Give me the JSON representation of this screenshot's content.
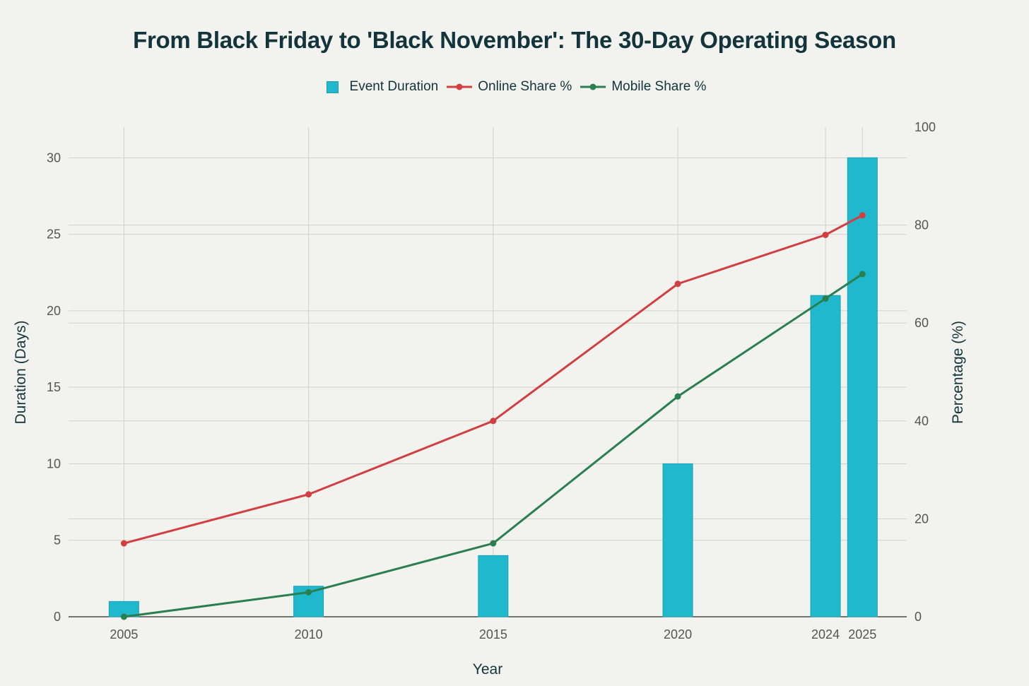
{
  "chart_data": {
    "type": "bar+line",
    "title": "From Black Friday to 'Black November': The 30-Day Operating Season",
    "xlabel": "Year",
    "ylabel_left": "Duration (Days)",
    "ylabel_right": "Percentage (%)",
    "categories": [
      "2005",
      "2010",
      "2015",
      "2020",
      "2024",
      "2025"
    ],
    "x": [
      2005,
      2010,
      2015,
      2020,
      2024,
      2025
    ],
    "xlim": [
      2003.5,
      2026.2
    ],
    "ylim_left": [
      0,
      32
    ],
    "ylim_right": [
      0,
      100
    ],
    "yticks_left": [
      0,
      5,
      10,
      15,
      20,
      25,
      30
    ],
    "yticks_right": [
      0,
      20,
      40,
      60,
      80,
      100
    ],
    "grid": true,
    "legend_position": "top-center",
    "series": [
      {
        "name": "Event Duration",
        "kind": "bar",
        "axis": "left",
        "color": "#1fb8cd",
        "values": [
          1,
          2,
          4,
          10,
          21,
          30
        ]
      },
      {
        "name": "Online Share %",
        "kind": "line",
        "axis": "right",
        "color": "#d13f41",
        "values": [
          15,
          25,
          40,
          68,
          78,
          82
        ]
      },
      {
        "name": "Mobile Share %",
        "kind": "line",
        "axis": "right",
        "color": "#2a7f50",
        "values": [
          0,
          5,
          15,
          45,
          65,
          70
        ]
      }
    ]
  }
}
